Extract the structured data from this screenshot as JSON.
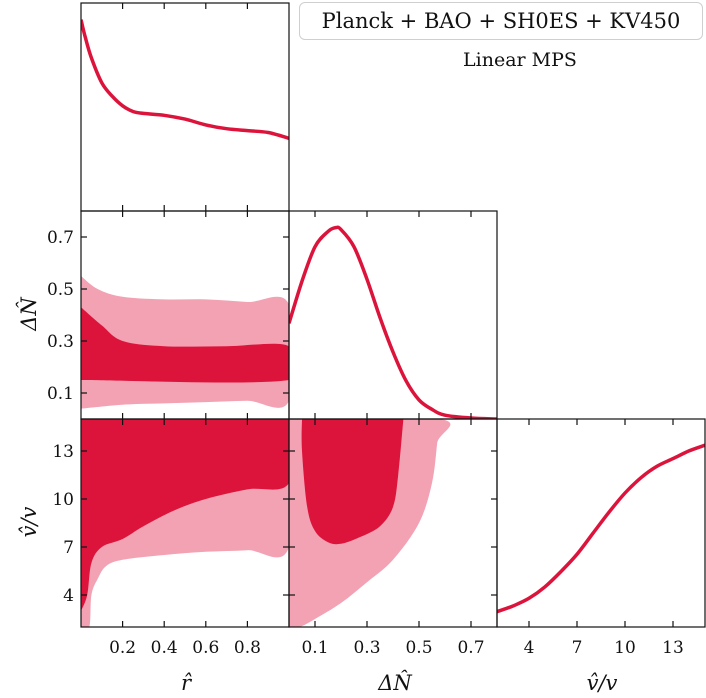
{
  "legend": {
    "label": "Planck + BAO + SH0ES + KV450"
  },
  "subtitle": "Linear MPS",
  "colors": {
    "line": "#dc143c",
    "inner": "#dc143c",
    "outer": "#f2a2b2"
  },
  "chart_data": {
    "type": "triangle-corner",
    "parameters": [
      {
        "key": "r",
        "label": "r̂",
        "range": [
          0.0,
          1.0
        ],
        "ticks": [
          0.2,
          0.4,
          0.6,
          0.8
        ],
        "tick_labels": [
          "0.2",
          "0.4",
          "0.6",
          "0.8"
        ]
      },
      {
        "key": "dN",
        "label": "ΔN̂",
        "range": [
          0.0,
          0.8
        ],
        "ticks": [
          0.1,
          0.3,
          0.5,
          0.7
        ],
        "tick_labels": [
          "0.1",
          "0.3",
          "0.5",
          "0.7"
        ]
      },
      {
        "key": "v",
        "label": "v̂/v",
        "range": [
          2.0,
          15.0
        ],
        "ticks": [
          4,
          7,
          10,
          13
        ],
        "tick_labels": [
          "4",
          "7",
          "10",
          "13"
        ]
      }
    ],
    "marginals": {
      "r": {
        "x": [
          0.0,
          0.02,
          0.05,
          0.1,
          0.15,
          0.2,
          0.25,
          0.3,
          0.4,
          0.5,
          0.6,
          0.7,
          0.8,
          0.9,
          1.0
        ],
        "y": [
          1.0,
          0.91,
          0.8,
          0.67,
          0.6,
          0.55,
          0.52,
          0.51,
          0.5,
          0.48,
          0.45,
          0.43,
          0.42,
          0.41,
          0.38
        ]
      },
      "dN": {
        "x": [
          0.0,
          0.05,
          0.1,
          0.15,
          0.18,
          0.2,
          0.25,
          0.3,
          0.35,
          0.4,
          0.45,
          0.5,
          0.55,
          0.6,
          0.7,
          0.8
        ],
        "y": [
          0.5,
          0.72,
          0.9,
          0.98,
          1.0,
          0.99,
          0.9,
          0.73,
          0.53,
          0.35,
          0.2,
          0.1,
          0.05,
          0.02,
          0.005,
          0.0
        ]
      },
      "v": {
        "x": [
          2.0,
          3.0,
          4.0,
          5.0,
          6.0,
          7.0,
          8.0,
          9.0,
          10.0,
          11.0,
          12.0,
          13.0,
          14.0,
          15.0
        ],
        "y": [
          0.08,
          0.11,
          0.15,
          0.21,
          0.29,
          0.38,
          0.49,
          0.6,
          0.7,
          0.78,
          0.84,
          0.88,
          0.92,
          0.95
        ]
      }
    },
    "contours": {
      "dN_vs_r": {
        "outer": [
          [
            0.0,
            0.04
          ],
          [
            0.2,
            0.055
          ],
          [
            0.4,
            0.06
          ],
          [
            0.6,
            0.065
          ],
          [
            0.8,
            0.07
          ],
          [
            1.0,
            0.07
          ],
          [
            1.0,
            0.44
          ],
          [
            0.8,
            0.45
          ],
          [
            0.6,
            0.46
          ],
          [
            0.4,
            0.46
          ],
          [
            0.2,
            0.47
          ],
          [
            0.08,
            0.5
          ],
          [
            0.0,
            0.55
          ]
        ],
        "inner": [
          [
            0.0,
            0.15
          ],
          [
            1.0,
            0.15
          ],
          [
            1.0,
            0.28
          ],
          [
            0.7,
            0.28
          ],
          [
            0.4,
            0.28
          ],
          [
            0.2,
            0.3
          ],
          [
            0.1,
            0.36
          ],
          [
            0.0,
            0.43
          ]
        ]
      },
      "v_vs_r": {
        "outer": [
          [
            0.0,
            2.0
          ],
          [
            0.04,
            2.0
          ],
          [
            0.05,
            4.0
          ],
          [
            0.08,
            5.0
          ],
          [
            0.12,
            5.8
          ],
          [
            0.2,
            6.2
          ],
          [
            0.4,
            6.5
          ],
          [
            0.6,
            6.7
          ],
          [
            0.8,
            6.8
          ],
          [
            1.0,
            7.0
          ],
          [
            1.0,
            15.0
          ],
          [
            0.0,
            15.0
          ]
        ],
        "inner": [
          [
            0.0,
            3.0
          ],
          [
            0.03,
            4.0
          ],
          [
            0.05,
            6.0
          ],
          [
            0.1,
            7.0
          ],
          [
            0.2,
            7.5
          ],
          [
            0.3,
            8.3
          ],
          [
            0.45,
            9.3
          ],
          [
            0.6,
            10.0
          ],
          [
            0.8,
            10.6
          ],
          [
            1.0,
            11.0
          ],
          [
            1.0,
            15.0
          ],
          [
            0.0,
            15.0
          ]
        ]
      },
      "v_vs_dN": {
        "outer": [
          [
            0.0,
            2.0
          ],
          [
            0.04,
            2.0
          ],
          [
            0.1,
            2.5
          ],
          [
            0.2,
            3.5
          ],
          [
            0.3,
            4.8
          ],
          [
            0.4,
            6.2
          ],
          [
            0.5,
            8.5
          ],
          [
            0.55,
            11.0
          ],
          [
            0.57,
            13.5
          ],
          [
            0.58,
            15.0
          ],
          [
            0.0,
            15.0
          ],
          [
            0.0,
            4.0
          ]
        ],
        "inner": [
          [
            0.05,
            15.0
          ],
          [
            0.05,
            13.0
          ],
          [
            0.07,
            9.5
          ],
          [
            0.1,
            8.0
          ],
          [
            0.15,
            7.3
          ],
          [
            0.2,
            7.2
          ],
          [
            0.27,
            7.6
          ],
          [
            0.35,
            8.3
          ],
          [
            0.4,
            9.5
          ],
          [
            0.42,
            11.5
          ],
          [
            0.44,
            15.0
          ]
        ]
      }
    }
  }
}
